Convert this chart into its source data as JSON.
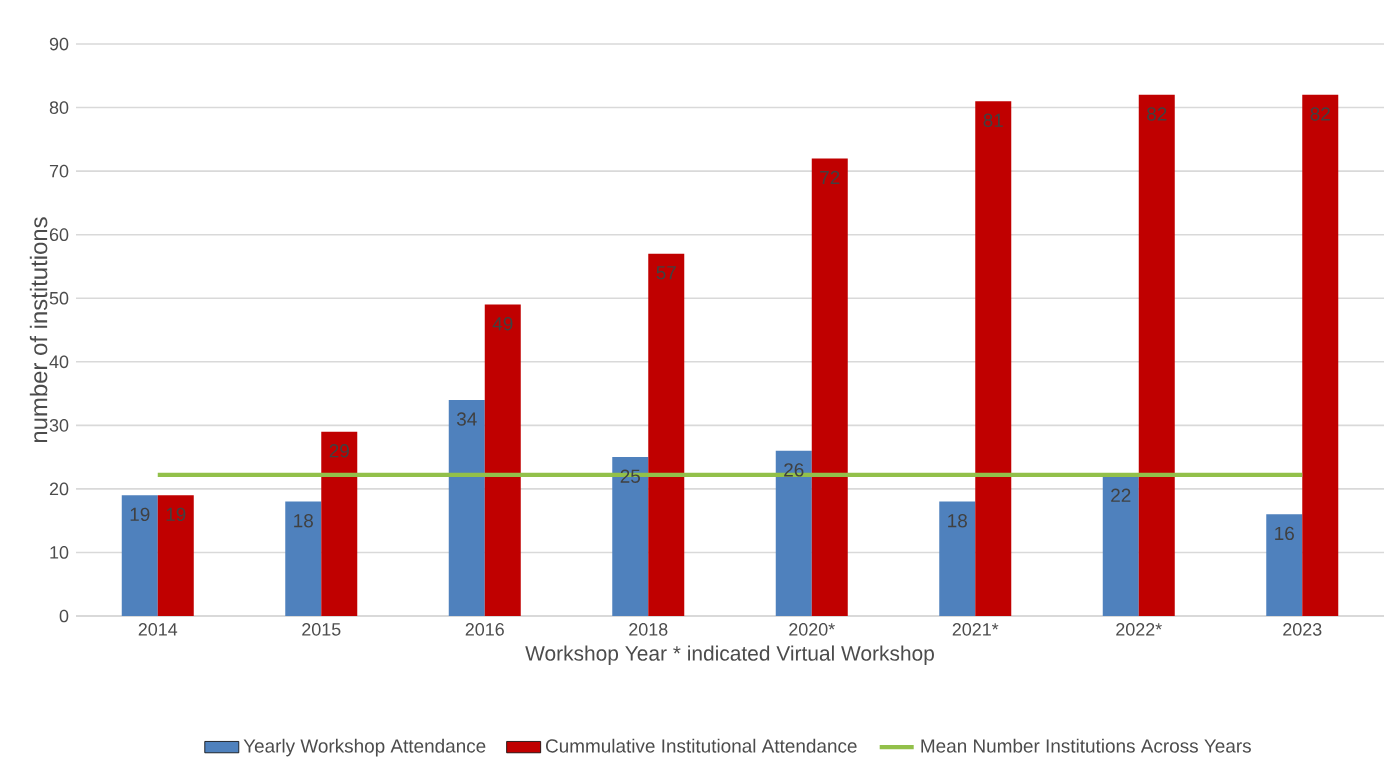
{
  "chart_data": {
    "type": "bar",
    "xlabel": "Workshop Year * indicated Virtual Workshop",
    "ylabel": "number of institutions",
    "categories": [
      "2014",
      "2015",
      "2016",
      "2018",
      "2020*",
      "2021*",
      "2022*",
      "2023"
    ],
    "series": [
      {
        "name": "Yearly Workshop Attendance",
        "color": "#4f81bd",
        "values": [
          19,
          18,
          34,
          25,
          26,
          18,
          22,
          16
        ],
        "value_labels": [
          "19",
          "18",
          "34",
          "25",
          "26",
          "18",
          "22",
          "16"
        ]
      },
      {
        "name": "Cummulative Institutional Attendance",
        "color": "#c00000",
        "values": [
          19,
          29,
          49,
          57,
          72,
          81,
          82,
          82
        ],
        "value_labels": [
          "19",
          "29",
          "49",
          "57",
          "72",
          "81",
          "82",
          "82"
        ]
      },
      {
        "name": "Mean Number Institutions Across Years",
        "type": "line",
        "color": "#92c04a",
        "values": [
          22.2,
          22.2,
          22.2,
          22.2,
          22.2,
          22.2,
          22.2,
          22.2
        ]
      }
    ],
    "ylim": [
      0,
      90
    ],
    "yticks": [
      0,
      10,
      20,
      30,
      40,
      50,
      60,
      70,
      80,
      90
    ],
    "grid": "y",
    "legend": "bottom"
  }
}
